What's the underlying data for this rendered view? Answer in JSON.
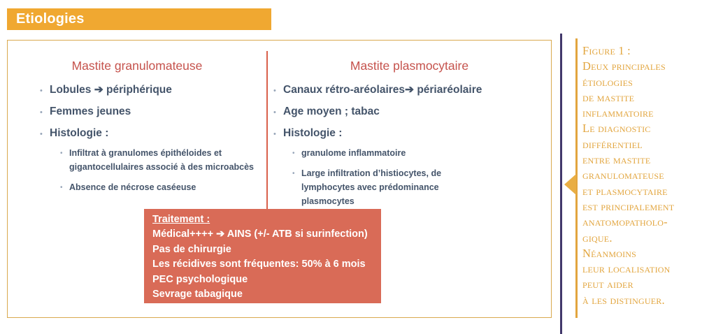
{
  "header": {
    "title": "Etiologies"
  },
  "panel": {
    "left": {
      "title": "Mastite granulomateuse",
      "bullets": [
        "Lobules ➔ périphérique",
        "Femmes jeunes",
        "Histologie :"
      ],
      "sub_bullets": [
        "Infiltrat à granulomes épithéloides et gigantocellulaires associé à des microabcès",
        "Absence de nécrose caséeuse"
      ]
    },
    "right": {
      "title": "Mastite plasmocytaire",
      "bullets": [
        "Canaux rétro-aréolaires➔ périaréolaire",
        "Age moyen ; tabac",
        "Histologie :"
      ],
      "sub_bullets": [
        "granulome inflammatoire",
        "Large infiltration d’histiocytes, de lymphocytes avec prédominance plasmocytes"
      ]
    },
    "treatment": {
      "title": "Traitement :",
      "lines": [
        "Médical++++ ➔ AINS (+/- ATB si surinfection)",
        "Pas de chirurgie",
        "Les récidives sont fréquentes: 50% à 6 mois",
        "PEC psychologique",
        "Sevrage tabagique"
      ]
    }
  },
  "figure_caption": {
    "lines": [
      "Figure 1 :",
      "Deux principales",
      "étiologies",
      "de mastite",
      "inflammatoire",
      "Le diagnostic",
      "différentiel",
      "entre mastite",
      "granulomateuse",
      "et plasmocytaire",
      "est principalement",
      "anatomopatholo-",
      "gique.",
      "Néanmoins",
      "leur localisation",
      "peut aider",
      "à les distinguer."
    ]
  },
  "colors": {
    "banner_orange": "#F0A831",
    "panel_border_gold": "#D9A94E",
    "heading_red": "#C5524C",
    "body_text_slate": "#44546A",
    "treatment_salmon": "#D96B57",
    "column_divider_red": "#D9604B",
    "caption_gold": "#E2A53E",
    "rule_purple": "#42386B"
  }
}
